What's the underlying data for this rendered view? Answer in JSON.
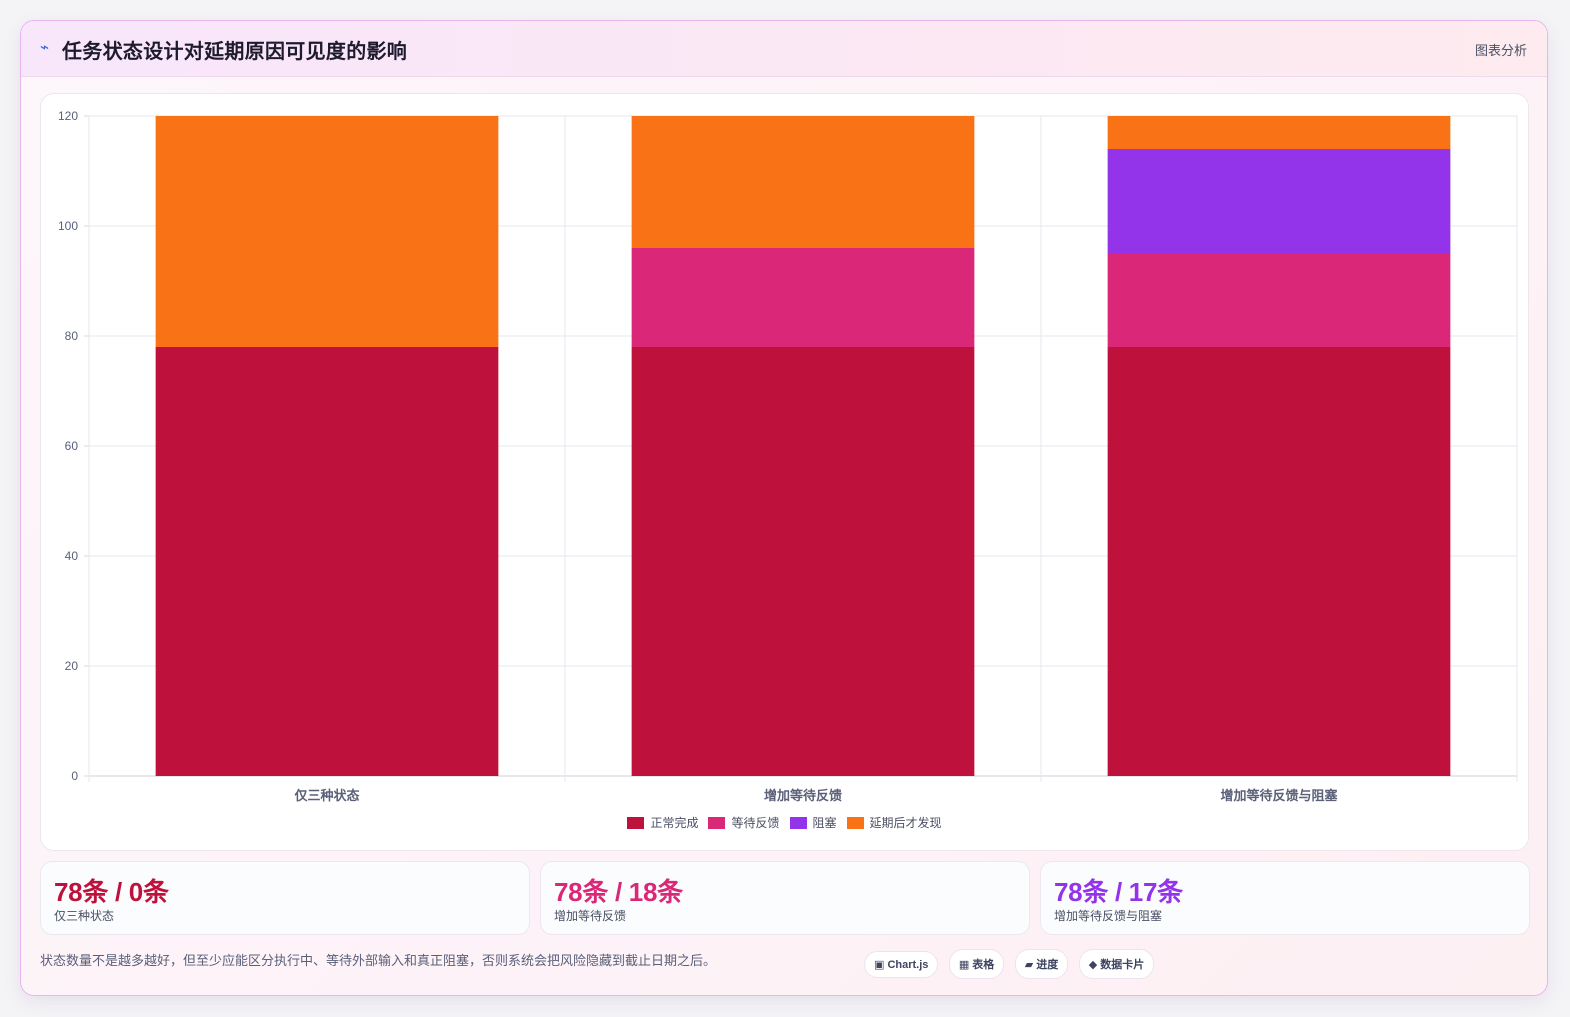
{
  "header": {
    "logo_icon": "lightning-icon",
    "title": "任务状态设计对延期原因可见度的影响",
    "tag": "图表分析"
  },
  "chart_data": {
    "type": "bar",
    "stacked": true,
    "categories": [
      "仅三种状态",
      "增加等待反馈",
      "增加等待反馈与阻塞"
    ],
    "series": [
      {
        "name": "正常完成",
        "color": "#be123c",
        "values": [
          78,
          78,
          78
        ]
      },
      {
        "name": "等待反馈",
        "color": "#db2777",
        "values": [
          0,
          18,
          17
        ]
      },
      {
        "name": "阻塞",
        "color": "#9333ea",
        "values": [
          0,
          0,
          19
        ]
      },
      {
        "name": "延期后才发现",
        "color": "#f97316",
        "values": [
          42,
          24,
          6
        ]
      }
    ],
    "ylim": [
      0,
      120
    ],
    "yticks": [
      0,
      20,
      40,
      60,
      80,
      100,
      120
    ],
    "grid": true,
    "legend_position": "bottom"
  },
  "stats": [
    {
      "value": "78条 / 0条",
      "label": "仅三种状态",
      "color": "#be123c"
    },
    {
      "value": "78条 / 18条",
      "label": "增加等待反馈",
      "color": "#db2777"
    },
    {
      "value": "78条 / 17条",
      "label": "增加等待反馈与阻塞",
      "color": "#9333ea"
    }
  ],
  "footnote": "状态数量不是越多越好，但至少应能区分执行中、等待外部输入和真正阻塞，否则系统会把风险隐藏到截止日期之后。",
  "chips": [
    {
      "icon": "chart-icon",
      "label": "▣ Chart.js"
    },
    {
      "icon": "table-icon",
      "label": "▦ 表格"
    },
    {
      "icon": "progress-icon",
      "label": "▰ 进度"
    },
    {
      "icon": "card-icon",
      "label": "◆ 数据卡片"
    }
  ]
}
